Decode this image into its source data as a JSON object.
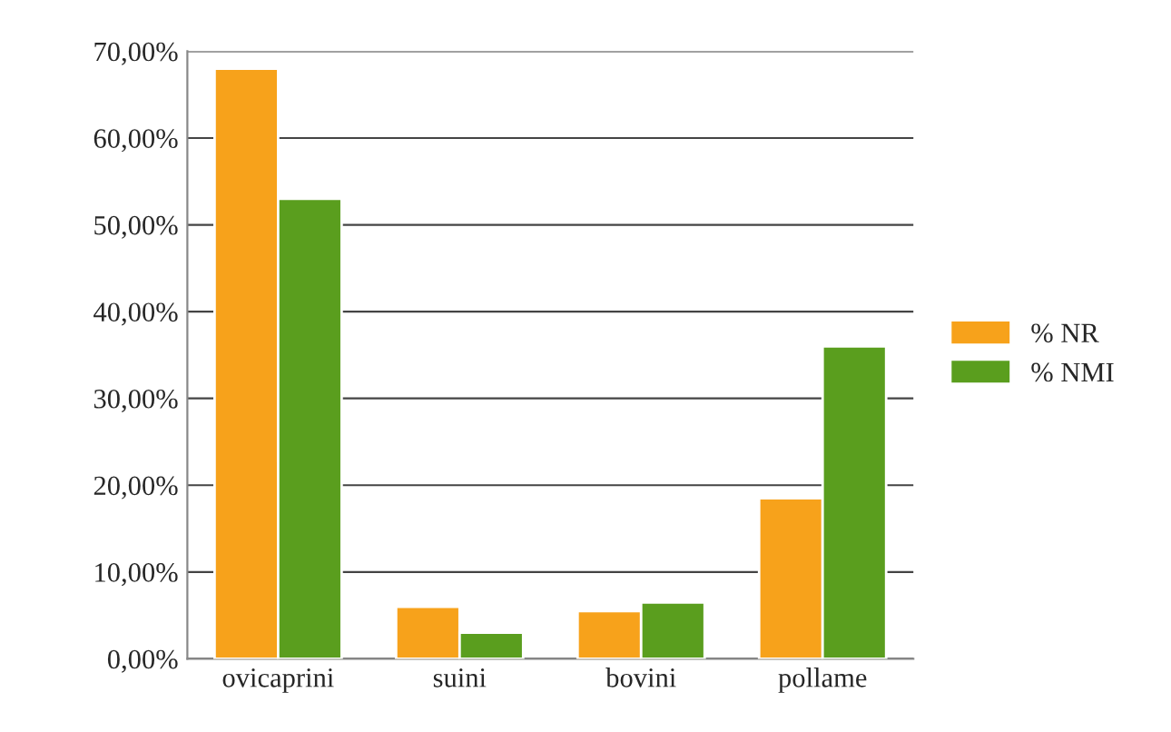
{
  "chart_data": {
    "type": "bar",
    "categories": [
      "ovicaprini",
      "suini",
      "bovini",
      "pollame"
    ],
    "series": [
      {
        "name": "% NR",
        "color": "#f7a21b",
        "values": [
          68,
          6,
          5.5,
          18.5
        ]
      },
      {
        "name": "% NMI",
        "color": "#5a9e1e",
        "values": [
          53,
          3,
          6.5,
          36
        ]
      }
    ],
    "ylim": [
      0,
      70
    ],
    "yticks": [
      {
        "value": 0,
        "label": "0,00%"
      },
      {
        "value": 10,
        "label": "10,00%"
      },
      {
        "value": 20,
        "label": "20,00%"
      },
      {
        "value": 30,
        "label": "30,00%"
      },
      {
        "value": 40,
        "label": "40,00%"
      },
      {
        "value": 50,
        "label": "50,00%"
      },
      {
        "value": 60,
        "label": "60,00%"
      },
      {
        "value": 70,
        "label": "70,00%"
      }
    ],
    "grid": "y",
    "legend": "right"
  }
}
